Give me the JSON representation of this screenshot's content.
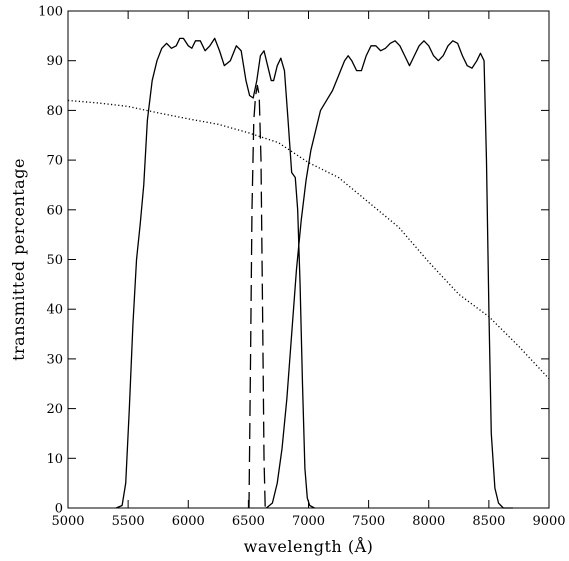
{
  "chart_data": {
    "type": "line",
    "title": "",
    "xlabel": "wavelength (Å)",
    "ylabel": "transmitted percentage",
    "xlim": [
      5000,
      9000
    ],
    "ylim": [
      0,
      100
    ],
    "x_ticks": [
      5000,
      5500,
      6000,
      6500,
      7000,
      7500,
      8000,
      8500,
      9000
    ],
    "y_ticks": [
      0,
      10,
      20,
      30,
      40,
      50,
      60,
      70,
      80,
      90,
      100
    ],
    "grid": false,
    "legend": "none",
    "series": [
      {
        "style": "solid",
        "color": "#000000",
        "points": [
          [
            5400,
            0
          ],
          [
            5450,
            0.5
          ],
          [
            5480,
            5
          ],
          [
            5510,
            20
          ],
          [
            5540,
            37
          ],
          [
            5570,
            50
          ],
          [
            5600,
            57
          ],
          [
            5630,
            65
          ],
          [
            5660,
            78
          ],
          [
            5700,
            86
          ],
          [
            5740,
            90
          ],
          [
            5780,
            92.5
          ],
          [
            5820,
            93.5
          ],
          [
            5860,
            92.5
          ],
          [
            5900,
            93
          ],
          [
            5930,
            94.5
          ],
          [
            5960,
            94.5
          ],
          [
            6000,
            93
          ],
          [
            6030,
            92.5
          ],
          [
            6060,
            94
          ],
          [
            6100,
            94
          ],
          [
            6140,
            92
          ],
          [
            6180,
            93
          ],
          [
            6220,
            94.5
          ],
          [
            6260,
            92
          ],
          [
            6300,
            89
          ],
          [
            6350,
            90
          ],
          [
            6400,
            93
          ],
          [
            6440,
            92
          ],
          [
            6480,
            86
          ],
          [
            6510,
            83
          ],
          [
            6540,
            82.5
          ],
          [
            6570,
            86
          ],
          [
            6600,
            91
          ],
          [
            6630,
            92
          ],
          [
            6660,
            89
          ],
          [
            6690,
            86
          ],
          [
            6710,
            86
          ],
          [
            6740,
            89
          ],
          [
            6770,
            90.5
          ],
          [
            6800,
            88
          ],
          [
            6830,
            78
          ],
          [
            6860,
            67.5
          ],
          [
            6890,
            66.5
          ],
          [
            6910,
            60
          ],
          [
            6930,
            45
          ],
          [
            6950,
            25
          ],
          [
            6970,
            8
          ],
          [
            6990,
            2
          ],
          [
            7010,
            0.5
          ],
          [
            7050,
            0
          ]
        ]
      },
      {
        "style": "solid",
        "color": "#000000",
        "points": [
          [
            6650,
            0
          ],
          [
            6700,
            1
          ],
          [
            6740,
            5
          ],
          [
            6780,
            12
          ],
          [
            6820,
            22
          ],
          [
            6860,
            35
          ],
          [
            6900,
            48
          ],
          [
            6940,
            58
          ],
          [
            6980,
            66
          ],
          [
            7020,
            72
          ],
          [
            7060,
            76
          ],
          [
            7100,
            80
          ],
          [
            7150,
            82
          ],
          [
            7200,
            84
          ],
          [
            7250,
            87
          ],
          [
            7300,
            90
          ],
          [
            7330,
            91
          ],
          [
            7360,
            90
          ],
          [
            7400,
            88
          ],
          [
            7440,
            88
          ],
          [
            7480,
            91
          ],
          [
            7520,
            93
          ],
          [
            7560,
            93
          ],
          [
            7600,
            92
          ],
          [
            7640,
            92.5
          ],
          [
            7680,
            93.5
          ],
          [
            7720,
            94
          ],
          [
            7760,
            93
          ],
          [
            7800,
            91
          ],
          [
            7840,
            89
          ],
          [
            7880,
            91
          ],
          [
            7920,
            93
          ],
          [
            7960,
            94
          ],
          [
            8000,
            93
          ],
          [
            8040,
            91
          ],
          [
            8080,
            90
          ],
          [
            8120,
            91
          ],
          [
            8160,
            93
          ],
          [
            8200,
            94
          ],
          [
            8240,
            93.5
          ],
          [
            8280,
            91
          ],
          [
            8320,
            89
          ],
          [
            8360,
            88.5
          ],
          [
            8400,
            90
          ],
          [
            8430,
            91.5
          ],
          [
            8460,
            90
          ],
          [
            8480,
            70
          ],
          [
            8500,
            40
          ],
          [
            8520,
            15
          ],
          [
            8550,
            4
          ],
          [
            8580,
            1
          ],
          [
            8620,
            0
          ],
          [
            8700,
            0
          ]
        ]
      },
      {
        "style": "dashed",
        "color": "#000000",
        "points": [
          [
            6505,
            0
          ],
          [
            6518,
            30
          ],
          [
            6530,
            60
          ],
          [
            6545,
            78
          ],
          [
            6560,
            83
          ],
          [
            6575,
            85
          ],
          [
            6590,
            83
          ],
          [
            6605,
            70
          ],
          [
            6618,
            40
          ],
          [
            6630,
            10
          ],
          [
            6640,
            0
          ]
        ]
      },
      {
        "style": "dotted",
        "color": "#000000",
        "points": [
          [
            5000,
            82
          ],
          [
            5250,
            81.5
          ],
          [
            5500,
            80.8
          ],
          [
            5750,
            79.5
          ],
          [
            6000,
            78.3
          ],
          [
            6250,
            77.2
          ],
          [
            6500,
            75.5
          ],
          [
            6750,
            73.5
          ],
          [
            7000,
            69.5
          ],
          [
            7250,
            66.5
          ],
          [
            7500,
            61.5
          ],
          [
            7750,
            56.5
          ],
          [
            8000,
            49.5
          ],
          [
            8250,
            43
          ],
          [
            8500,
            38.5
          ],
          [
            8750,
            32.5
          ],
          [
            9000,
            26
          ]
        ]
      }
    ]
  }
}
